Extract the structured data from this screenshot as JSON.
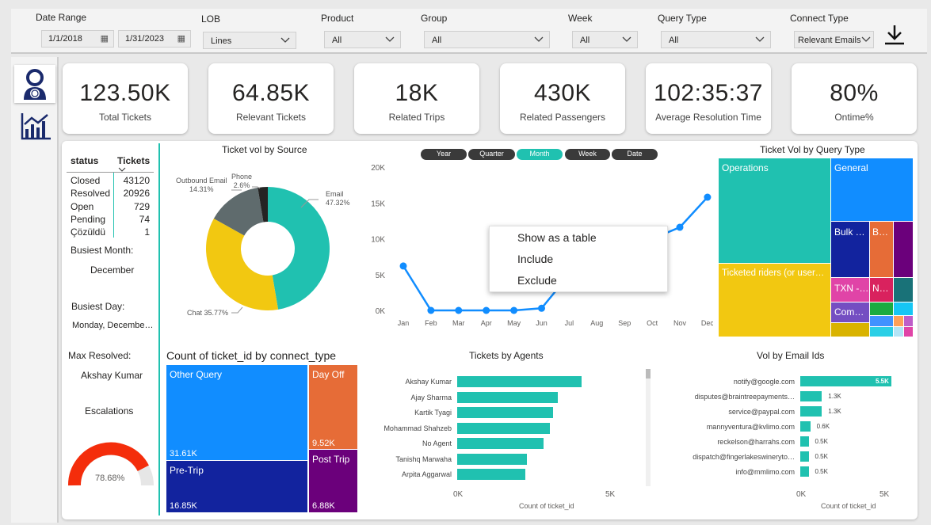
{
  "filters": {
    "date_range_label": "Date Range",
    "date_start": "1/1/2018",
    "date_end": "1/31/2023",
    "lob_label": "LOB",
    "lob_value": "Lines",
    "product_label": "Product",
    "product_value": "All",
    "group_label": "Group",
    "group_value": "All",
    "week_label": "Week",
    "week_value": "All",
    "query_type_label": "Query Type",
    "query_type_value": "All",
    "connect_type_label": "Connect Type",
    "connect_type_value": "Relevant Emails"
  },
  "nav": {
    "items": [
      "agent-icon",
      "chart-icon"
    ]
  },
  "kpis": [
    {
      "value": "123.50K",
      "label": "Total Tickets"
    },
    {
      "value": "64.85K",
      "label": "Relevant Tickets"
    },
    {
      "value": "18K",
      "label": "Related Trips"
    },
    {
      "value": "430K",
      "label": "Related Passengers"
    },
    {
      "value": "102:35:37",
      "label": "Average Resolution Time"
    },
    {
      "value": "80%",
      "label": "Ontime%"
    }
  ],
  "status_table": {
    "headers": [
      "status",
      "Tickets"
    ],
    "rows": [
      {
        "status": "Closed",
        "tickets": "43120"
      },
      {
        "status": "Resolved",
        "tickets": "20926"
      },
      {
        "status": "Open",
        "tickets": "729"
      },
      {
        "status": "Pending",
        "tickets": "74"
      },
      {
        "status": "Çözüldü",
        "tickets": "1"
      }
    ]
  },
  "side_stats": {
    "busiest_month_label": "Busiest Month:",
    "busiest_month": "December",
    "busiest_day_label": "Busiest Day:",
    "busiest_day": "Monday, Decembe…",
    "max_resolved_label": "Max Resolved:",
    "max_resolved": "Akshay Kumar",
    "escalations_label": "Escalations",
    "escalations_value": "78.68%"
  },
  "chart_data": [
    {
      "type": "pie",
      "title": "Ticket vol by Source",
      "labels": [
        "Email",
        "Chat",
        "Outbound Email",
        "Phone"
      ],
      "values": [
        47.32,
        35.77,
        14.31,
        2.6
      ],
      "display_labels": [
        "Email\n47.32%",
        "Chat 35.77%",
        "Outbound Email\n14.31%",
        "Phone\n2.6%"
      ],
      "colors": [
        "#20c1b0",
        "#f2c811",
        "#5f6b6d",
        "#252423"
      ]
    },
    {
      "type": "line",
      "x": [
        "Jan",
        "Feb",
        "Mar",
        "Apr",
        "May",
        "Jun",
        "Jul",
        "Aug",
        "Sep",
        "Oct",
        "Nov",
        "Dec"
      ],
      "y_ticks": [
        "20K",
        "15K",
        "10K",
        "5K",
        "0K"
      ],
      "ylim": [
        0,
        20000
      ],
      "series": [
        {
          "values": [
            6200,
            0,
            0,
            0,
            0,
            300,
            5000,
            7000,
            9000,
            10000,
            11600,
            15800
          ]
        }
      ],
      "drill_buttons": [
        "Year",
        "Quarter",
        "Month",
        "Week",
        "Date"
      ],
      "active_button": "Month"
    },
    {
      "type": "heatmap",
      "title": "Ticket Vol by Query Type",
      "labels": [
        "Operations",
        "General",
        "Ticketed riders (or user…",
        "Bulk …",
        "B…",
        "TXN -…",
        "N…",
        "Com…"
      ]
    },
    {
      "type": "heatmap",
      "title": "Count of ticket_id by connect_type",
      "labels": [
        "Other Query",
        "Day Off",
        "Pre-Trip",
        "Post Trip"
      ],
      "values": [
        "31.61K",
        "9.52K",
        "16.85K",
        "6.88K"
      ]
    },
    {
      "type": "bar",
      "title": "Tickets by Agents",
      "categories": [
        "Akshay Kumar",
        "Ajay Sharma",
        "Kartik Tyagi",
        "Mohammad Shahzeb",
        "No Agent",
        "Tanishq Marwaha",
        "Arpita Aggarwal"
      ],
      "values": [
        4100,
        3300,
        3150,
        3050,
        2850,
        2300,
        2250
      ],
      "x_ticks": [
        "0K",
        "5K"
      ],
      "xlim": [
        0,
        5000
      ],
      "xlabel": "Count of ticket_id"
    },
    {
      "type": "bar",
      "title": "Vol by Email Ids",
      "categories": [
        "notify@google.com",
        "disputes@braintreepayments…",
        "service@paypal.com",
        "mannyventura@kvlimo.com",
        "reckelson@harrahs.com",
        "dispatch@fingerlakeswineryto…",
        "info@mmlimo.com"
      ],
      "values": [
        5500,
        1300,
        1300,
        600,
        500,
        500,
        500
      ],
      "value_labels": [
        "5.5K",
        "1.3K",
        "1.3K",
        "0.6K",
        "0.5K",
        "0.5K",
        "0.5K"
      ],
      "x_ticks": [
        "0K",
        "5K"
      ],
      "xlim": [
        0,
        5000
      ],
      "xlabel": "Count of ticket_id"
    }
  ],
  "context_menu": {
    "items": [
      "Show as a table",
      "Include",
      "Exclude"
    ]
  },
  "colors": {
    "teal": "#20c1b0",
    "blue": "#118dff",
    "navy": "#12239e",
    "orange": "#e66c37",
    "purple": "#6b007b",
    "yellow": "#f2c811",
    "red": "#f42d0b"
  }
}
